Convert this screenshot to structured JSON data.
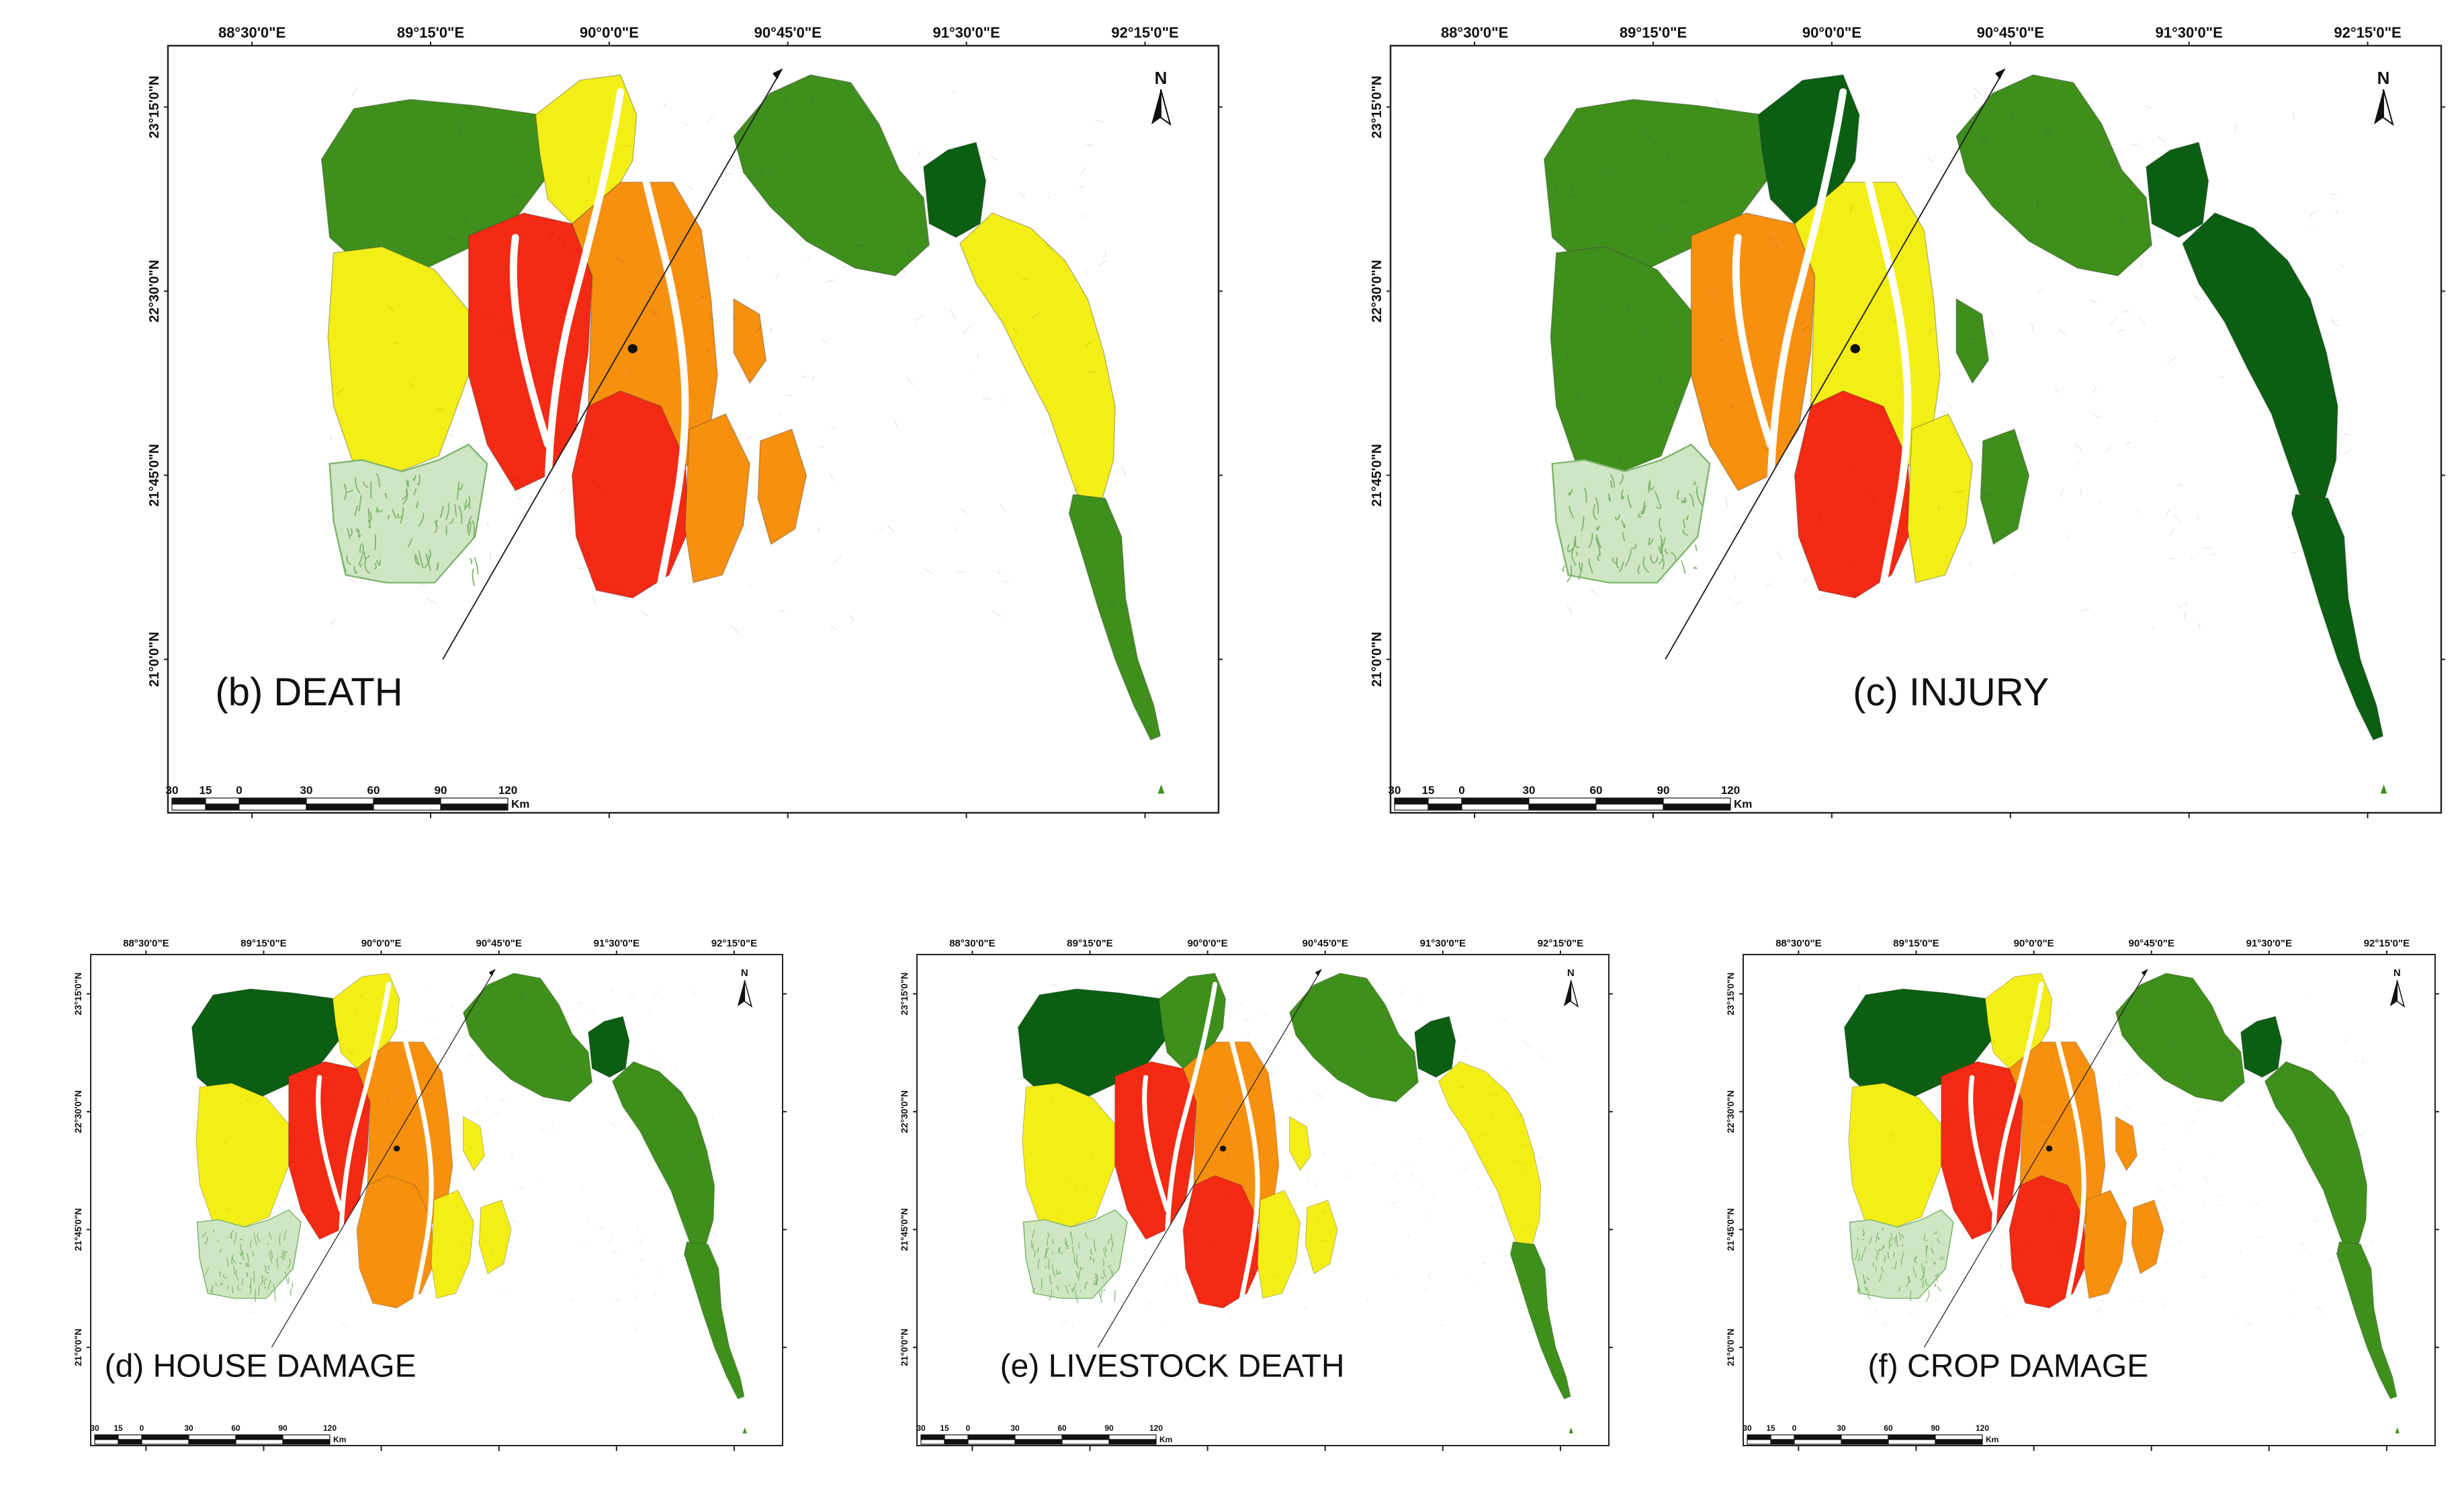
{
  "colors": {
    "dark_green": "#0b5e12",
    "mid_green": "#3f8f1c",
    "light_green": "#6aab2a",
    "yellow": "#f4ee17",
    "orange": "#f7900f",
    "red": "#f42a14",
    "sundarbans": "#cfe6c4",
    "sundarbans_line": "#7db56c"
  },
  "lon_labels": [
    "88°30'0\"E",
    "89°15'0\"E",
    "90°0'0\"E",
    "90°45'0\"E",
    "91°30'0\"E",
    "92°15'0\"E"
  ],
  "lat_labels": [
    "23°15'0\"N",
    "22°30'0\"N",
    "21°45'0\"N",
    "21°0'0\"N"
  ],
  "north_label": "N",
  "scale": {
    "ticks": [
      "30",
      "15",
      "0",
      "30",
      "60",
      "90",
      "120"
    ],
    "unit": "Km"
  },
  "panels": [
    {
      "id": "b",
      "title": "(b) DEATH",
      "regions": {
        "nw": "mid_green",
        "w": "yellow",
        "c": "red",
        "ce": "orange",
        "n": "yellow",
        "s": "red",
        "se": "orange",
        "isl": "orange",
        "ne": "mid_green",
        "dk": "dark_green",
        "coast": "yellow",
        "tip": "mid_green"
      }
    },
    {
      "id": "c",
      "title": "(c) INJURY",
      "regions": {
        "nw": "mid_green",
        "w": "mid_green",
        "c": "orange",
        "ce": "yellow",
        "n": "dark_green",
        "s": "red",
        "se": "yellow",
        "isl": "mid_green",
        "ne": "mid_green",
        "dk": "dark_green",
        "coast": "dark_green",
        "tip": "dark_green"
      }
    },
    {
      "id": "d",
      "title": "(d) HOUSE DAMAGE",
      "regions": {
        "nw": "dark_green",
        "w": "yellow",
        "c": "red",
        "ce": "orange",
        "n": "yellow",
        "s": "orange",
        "se": "yellow",
        "isl": "yellow",
        "ne": "mid_green",
        "dk": "dark_green",
        "coast": "mid_green",
        "tip": "mid_green"
      }
    },
    {
      "id": "e",
      "title": "(e) LIVESTOCK DEATH",
      "regions": {
        "nw": "dark_green",
        "w": "yellow",
        "c": "red",
        "ce": "orange",
        "n": "mid_green",
        "s": "red",
        "se": "yellow",
        "isl": "yellow",
        "ne": "mid_green",
        "dk": "dark_green",
        "coast": "yellow",
        "tip": "mid_green"
      }
    },
    {
      "id": "f",
      "title": "(f) CROP DAMAGE",
      "regions": {
        "nw": "dark_green",
        "w": "yellow",
        "c": "red",
        "ce": "orange",
        "n": "yellow",
        "s": "red",
        "se": "orange",
        "isl": "orange",
        "ne": "mid_green",
        "dk": "dark_green",
        "coast": "mid_green",
        "tip": "mid_green"
      }
    }
  ]
}
